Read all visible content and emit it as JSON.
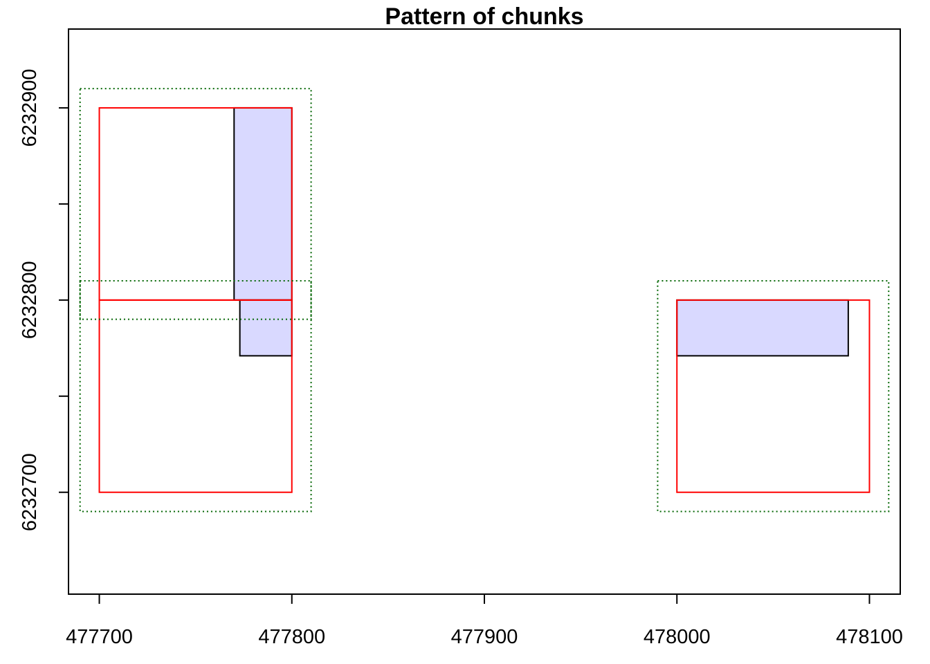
{
  "chart_data": {
    "type": "rectangles",
    "title": "Pattern of chunks",
    "xlabel": "",
    "ylabel": "",
    "xlim": [
      477684,
      478116
    ],
    "ylim": [
      6232647,
      6232941
    ],
    "x_ticks": [
      477700,
      477800,
      477900,
      478000,
      478100
    ],
    "x_tick_labels": [
      "477700",
      "477800",
      "477900",
      "478000",
      "478100"
    ],
    "y_ticks": [
      6232700,
      6232750,
      6232800,
      6232850,
      6232900
    ],
    "y_tick_labels": [
      "6232700",
      "",
      "6232800",
      "",
      "6232900"
    ],
    "grid": false,
    "colors": {
      "chunk": "#ff0000",
      "buffer": "#006400",
      "coverage_fill": "#d9d9ff",
      "coverage_stroke": "#000000",
      "axis": "#000000"
    },
    "coverage_areas": [
      {
        "xmin": 477770,
        "xmax": 477800,
        "ymin": 6232800,
        "ymax": 6232900
      },
      {
        "xmin": 477773,
        "xmax": 477800,
        "ymin": 6232771,
        "ymax": 6232800
      },
      {
        "xmin": 478000,
        "xmax": 478089,
        "ymin": 6232771,
        "ymax": 6232800
      }
    ],
    "chunks": [
      {
        "xmin": 477700,
        "xmax": 477800,
        "ymin": 6232800,
        "ymax": 6232900
      },
      {
        "xmin": 477700,
        "xmax": 477800,
        "ymin": 6232700,
        "ymax": 6232800
      },
      {
        "xmin": 478000,
        "xmax": 478100,
        "ymin": 6232700,
        "ymax": 6232800
      }
    ],
    "buffers": [
      {
        "xmin": 477690,
        "xmax": 477810,
        "ymin": 6232790,
        "ymax": 6232910
      },
      {
        "xmin": 477690,
        "xmax": 477810,
        "ymin": 6232690,
        "ymax": 6232810
      },
      {
        "xmin": 477990,
        "xmax": 478110,
        "ymin": 6232690,
        "ymax": 6232810
      }
    ]
  }
}
